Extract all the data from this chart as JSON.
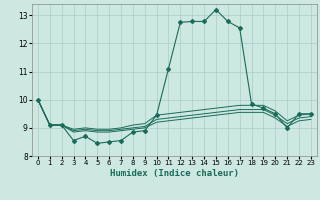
{
  "xlabel": "Humidex (Indice chaleur)",
  "background_color": "#cce8e0",
  "grid_color": "#aacccc",
  "line_color": "#1a6b5a",
  "xlim": [
    -0.5,
    23.5
  ],
  "ylim": [
    8.0,
    13.4
  ],
  "yticks": [
    8,
    9,
    10,
    11,
    12,
    13
  ],
  "xticks": [
    0,
    1,
    2,
    3,
    4,
    5,
    6,
    7,
    8,
    9,
    10,
    11,
    12,
    13,
    14,
    15,
    16,
    17,
    18,
    19,
    20,
    21,
    22,
    23
  ],
  "series": [
    [
      10.0,
      9.1,
      9.1,
      8.55,
      8.7,
      8.45,
      8.5,
      8.55,
      8.85,
      8.9,
      9.45,
      11.1,
      12.75,
      12.78,
      12.78,
      13.2,
      12.78,
      12.55,
      9.85,
      9.7,
      9.5,
      9.0,
      9.5,
      9.5
    ],
    [
      10.0,
      9.1,
      9.1,
      8.95,
      9.0,
      8.95,
      8.95,
      9.0,
      9.1,
      9.15,
      9.45,
      9.5,
      9.55,
      9.6,
      9.65,
      9.7,
      9.75,
      9.8,
      9.8,
      9.8,
      9.6,
      9.25,
      9.45,
      9.5
    ],
    [
      10.0,
      9.1,
      9.1,
      8.9,
      8.95,
      8.9,
      8.9,
      8.95,
      9.0,
      9.05,
      9.3,
      9.35,
      9.4,
      9.45,
      9.5,
      9.55,
      9.6,
      9.65,
      9.65,
      9.65,
      9.45,
      9.15,
      9.35,
      9.4
    ],
    [
      10.0,
      9.1,
      9.1,
      8.85,
      8.9,
      8.85,
      8.85,
      8.9,
      8.95,
      9.0,
      9.2,
      9.25,
      9.3,
      9.35,
      9.4,
      9.45,
      9.5,
      9.55,
      9.55,
      9.55,
      9.35,
      9.05,
      9.25,
      9.3
    ]
  ]
}
